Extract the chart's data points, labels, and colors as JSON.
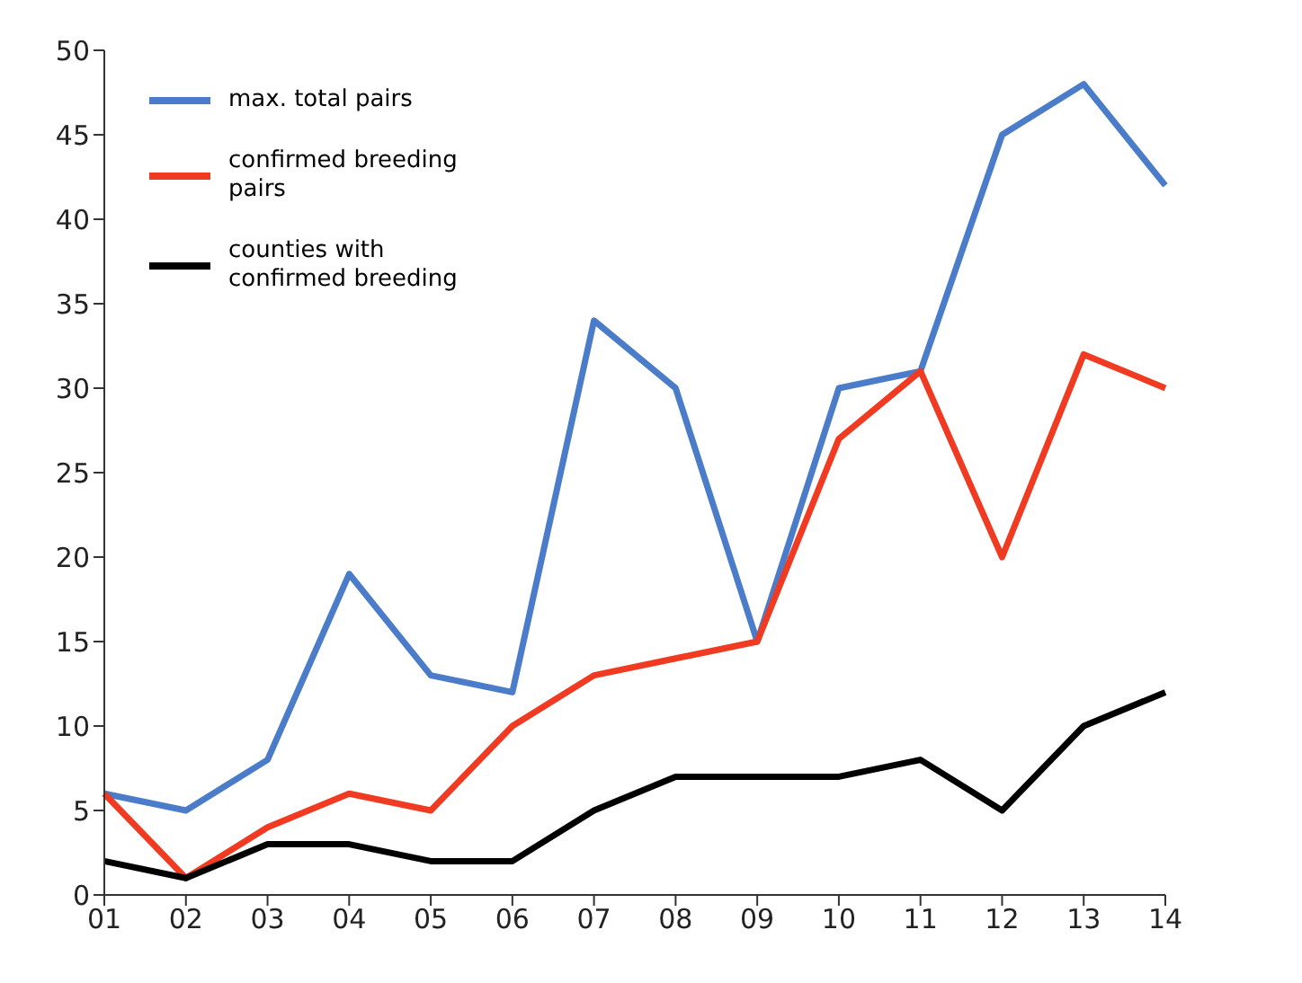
{
  "chart_data": {
    "type": "line",
    "categories": [
      "01",
      "02",
      "03",
      "04",
      "05",
      "06",
      "07",
      "08",
      "09",
      "10",
      "11",
      "12",
      "13",
      "14"
    ],
    "series": [
      {
        "name": "max. total pairs",
        "color": "#4a7cc9",
        "values": [
          6,
          5,
          8,
          19,
          13,
          12,
          34,
          30,
          15,
          30,
          31,
          45,
          48,
          42
        ]
      },
      {
        "name": "confirmed breeding pairs",
        "color": "#f03a22",
        "values": [
          6,
          1,
          4,
          6,
          5,
          10,
          13,
          14,
          15,
          27,
          31,
          20,
          32,
          30
        ]
      },
      {
        "name": "counties with confirmed breeding",
        "color": "#000000",
        "values": [
          2,
          1,
          3,
          3,
          2,
          2,
          5,
          7,
          7,
          7,
          8,
          5,
          10,
          12
        ]
      }
    ],
    "ylim": [
      0,
      50
    ],
    "yticks": [
      0,
      5,
      10,
      15,
      20,
      25,
      30,
      35,
      40,
      45,
      50
    ],
    "grid": false,
    "legend": "top left",
    "marker": "none",
    "line_style": "solid"
  }
}
